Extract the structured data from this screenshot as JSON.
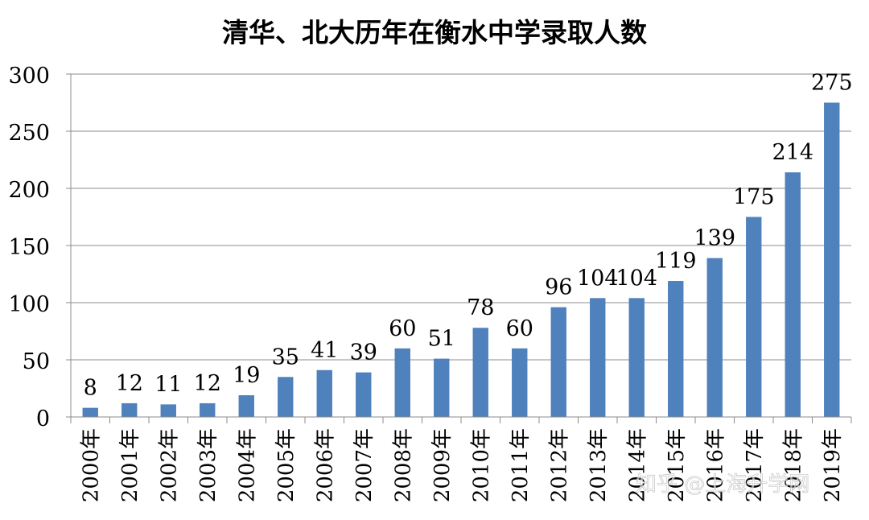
{
  "chart_data": {
    "type": "bar",
    "title": "清华、北大历年在衡水中学录取人数",
    "categories": [
      "2000年",
      "2001年",
      "2002年",
      "2003年",
      "2004年",
      "2005年",
      "2006年",
      "2007年",
      "2008年",
      "2009年",
      "2010年",
      "2011年",
      "2012年",
      "2013年",
      "2014年",
      "2015年",
      "2016年",
      "2017年",
      "2018年",
      "2019年"
    ],
    "values": [
      8,
      12,
      11,
      12,
      19,
      35,
      41,
      39,
      60,
      51,
      78,
      60,
      96,
      104,
      104,
      119,
      139,
      175,
      214,
      275
    ],
    "ylim": [
      0,
      300
    ],
    "yticks": [
      0,
      50,
      100,
      150,
      200,
      250,
      300
    ],
    "grid": true,
    "legend": "none",
    "bar_color": "#4f81bd"
  },
  "watermark": "知乎 @上海升学网"
}
